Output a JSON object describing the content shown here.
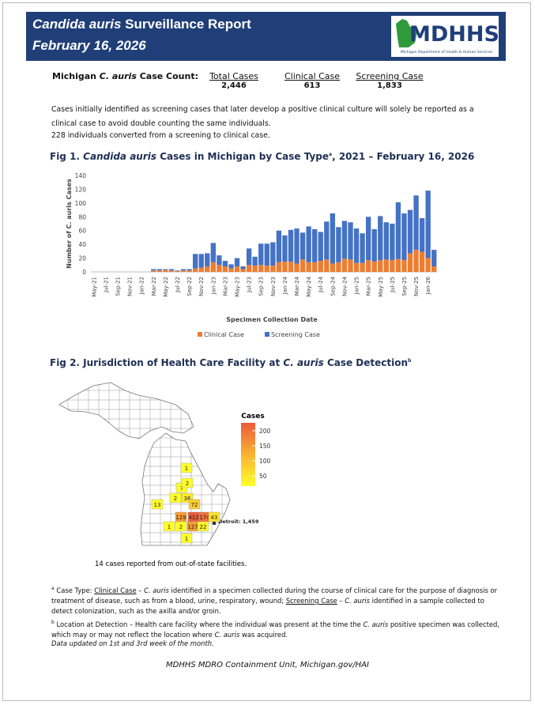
{
  "header": {
    "title": [
      "Candida auris",
      " Surveillance Report"
    ],
    "date": "February 16, 2026",
    "logo": "MDHHS",
    "logo_subtitle": "Michigan Department of Health & Human Services"
  },
  "case_count": {
    "label": [
      "Michigan ",
      "C. auris",
      " Case Count:"
    ],
    "columns": [
      {
        "name": "Total Cases",
        "value": "2,446"
      },
      {
        "name": "Clinical Case",
        "value": "613"
      },
      {
        "name": "Screening Case",
        "value": "1,833"
      }
    ]
  },
  "notes": [
    "Cases initially identified as screening cases that later develop a positive clinical culture will solely be reported as a clinical case to avoid double counting the same individuals.",
    "228 individuals converted from a screening to clinical case."
  ],
  "chart_data": {
    "type": "bar",
    "stacked": true,
    "title": [
      "Fig 1. ",
      "Candida auris",
      " Cases in Michigan by Case Type",
      "a",
      ", 2021 – February 16, 2026"
    ],
    "ylabel": "Number of C. auris Cases",
    "xlabel": "Specimen Collection Date",
    "categories": [
      "May-21",
      null,
      "Jul-21",
      null,
      "Sep-21",
      null,
      "Nov-21",
      null,
      "Jan-22",
      null,
      "Mar-22",
      null,
      "May-22",
      null,
      "Jul-22",
      null,
      "Sep-22",
      null,
      "Nov-22",
      null,
      "Jan-23",
      null,
      "Mar-23",
      null,
      "May-23",
      null,
      "Jul-23",
      null,
      "Sep-23",
      null,
      "Nov-23",
      null,
      "Jan-24",
      null,
      "Mar-24",
      null,
      "May-24",
      null,
      "Jul-24",
      null,
      "Sep-24",
      null,
      "Nov-24",
      null,
      "Jan-25",
      null,
      "Mar-25",
      null,
      "May-25",
      null,
      "Jul-25",
      null,
      "Sep-25",
      null,
      "Nov-25",
      null,
      "Jan-26",
      null
    ],
    "series": [
      {
        "name": "Clinical Case",
        "color": "#ed7d31",
        "values": [
          0,
          0,
          0,
          0,
          0,
          0,
          0,
          0,
          0,
          0,
          2,
          2,
          3,
          2,
          1,
          2,
          2,
          5,
          6,
          8,
          14,
          10,
          8,
          5,
          8,
          4,
          10,
          9,
          10,
          9,
          9,
          14,
          15,
          15,
          12,
          18,
          14,
          14,
          16,
          18,
          12,
          14,
          19,
          18,
          13,
          13,
          17,
          15,
          17,
          18,
          17,
          19,
          17,
          27,
          32,
          29,
          20,
          8
        ]
      },
      {
        "name": "Screening Case",
        "color": "#4472c4",
        "values": [
          0,
          0,
          0,
          0,
          0,
          0,
          0,
          0,
          0,
          0,
          2,
          2,
          1,
          2,
          1,
          2,
          2,
          21,
          20,
          19,
          28,
          14,
          8,
          6,
          12,
          4,
          24,
          13,
          31,
          32,
          34,
          46,
          38,
          46,
          51,
          39,
          52,
          48,
          42,
          55,
          73,
          51,
          55,
          54,
          50,
          43,
          63,
          47,
          64,
          54,
          53,
          82,
          68,
          63,
          79,
          49,
          98,
          24
        ]
      }
    ],
    "ylim": [
      0,
      140
    ],
    "yticks": [
      0,
      20,
      40,
      60,
      80,
      100,
      120,
      140
    ],
    "grid": false,
    "legend": "bottom"
  },
  "map": {
    "title": [
      "Fig 2. Jurisdiction of Health Care Facility at ",
      "C. auris",
      " Case Detection",
      "b"
    ],
    "legend_title": "Cases",
    "legend_ticks": [
      50,
      100,
      150,
      200
    ],
    "scale_colors": [
      "#ffff2a",
      "#f9b233",
      "#ec5a3a"
    ],
    "counties": [
      1,
      7,
      2,
      2,
      36,
      13,
      72,
      129,
      412,
      174,
      43,
      1,
      2,
      127,
      22,
      1
    ],
    "detroit": "Detroit: 1,459",
    "note": "14 cases reported from out-of-state facilities."
  },
  "footnotes": {
    "a": [
      "a",
      " Case Type: ",
      "Clinical Case",
      " – ",
      "C. auris",
      " identified in a specimen collected during the course of clinical care for the purpose of diagnosis or treatment of disease, such as from a blood, urine, respiratory, wound; ",
      "Screening Case",
      " – ",
      "C. auris",
      " identified in a sample collected to detect colonization, such as the axilla and/or groin."
    ],
    "b": [
      "b",
      " Location at Detection – Health care facility where the individual was present at the time the ",
      "C. auris",
      " positive specimen was collected, which may or may not reflect the location where ",
      "C. auris",
      " was acquired."
    ],
    "update": "Data updated on 1st and 3rd week of the month."
  },
  "footer": "MDHHS MDRO Containment Unit, Michigan.gov/HAI"
}
